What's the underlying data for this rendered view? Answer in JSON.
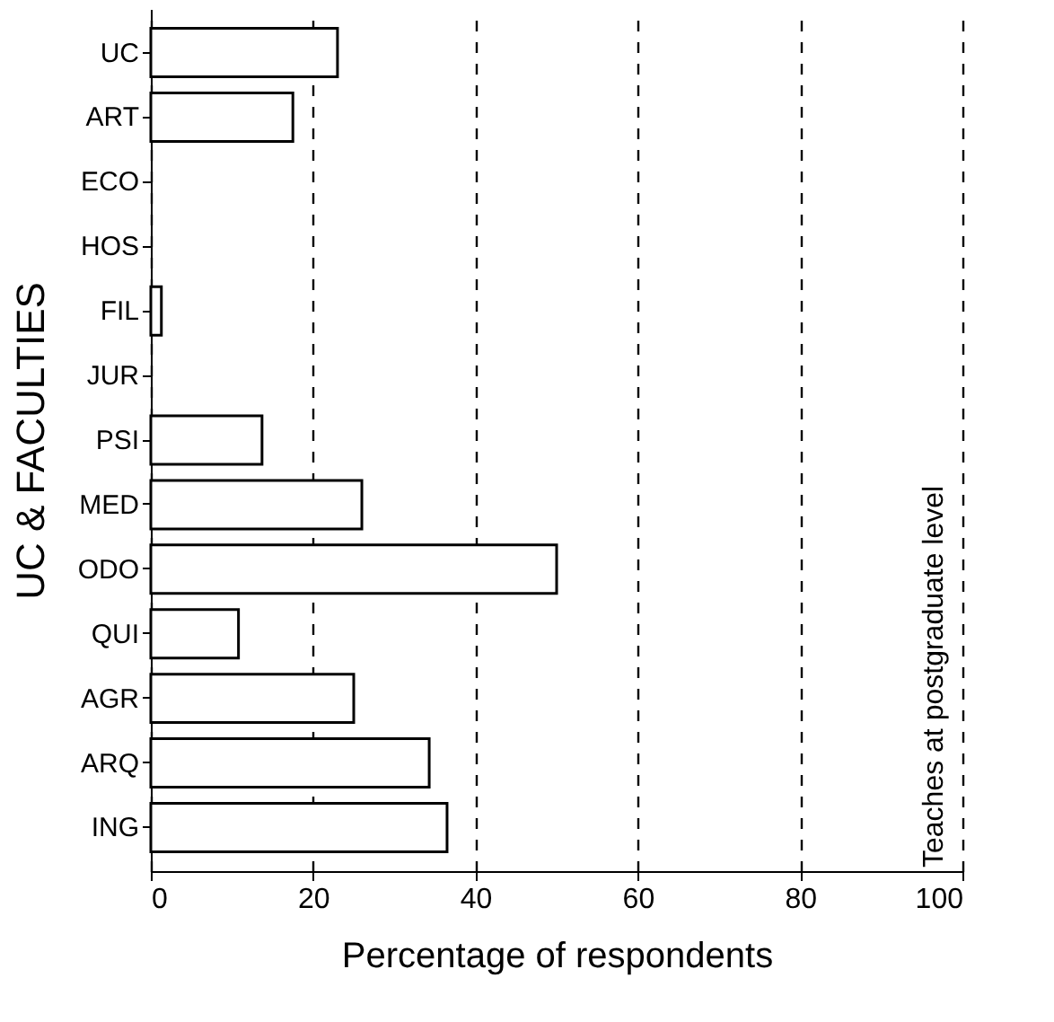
{
  "chart_data": {
    "type": "bar",
    "orientation": "horizontal",
    "xlabel": "Percentage of respondents",
    "ylabel": "UC & FACULTIES",
    "categories": [
      "UC",
      "ART",
      "ECO",
      "HOS",
      "FIL",
      "JUR",
      "PSI",
      "MED",
      "ODO",
      "QUI",
      "AGR",
      "ARQ",
      "ING"
    ],
    "values": [
      23,
      17.5,
      0,
      0,
      1.3,
      0,
      13.7,
      26,
      50,
      10.8,
      25,
      34.3,
      36.5
    ],
    "color": "#ffffff",
    "xlim": [
      0,
      100
    ],
    "xticks": [
      0,
      20,
      40,
      60,
      80,
      100
    ],
    "grid": "x",
    "line_style": "dashed",
    "annotations": [
      "Teaches at postgraduate level"
    ]
  }
}
